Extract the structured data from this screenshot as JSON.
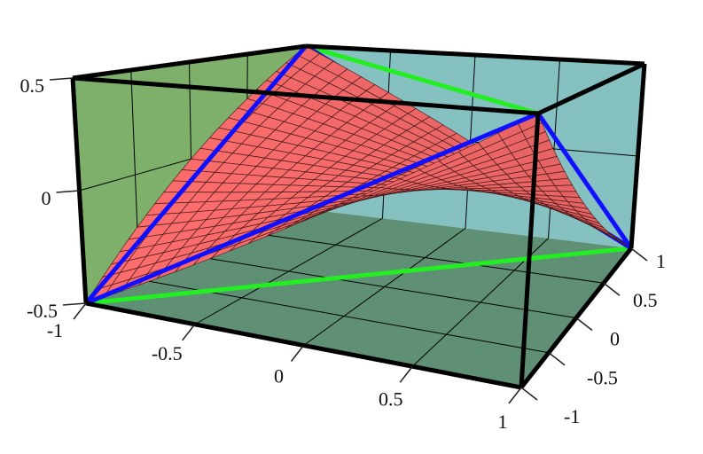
{
  "chart_data": {
    "type": "surface",
    "title": "",
    "xlabel": "",
    "ylabel": "",
    "zlabel": "",
    "xlim": [
      -1,
      1
    ],
    "ylim": [
      -1,
      1
    ],
    "zlim": [
      -0.5,
      0.5
    ],
    "x_ticks": [
      "-1",
      "-0.5",
      "0",
      "0.5",
      "1"
    ],
    "y_ticks": [
      "-1",
      "-0.5",
      "0",
      "0.5",
      "1"
    ],
    "z_ticks": [
      "-0.5",
      "0",
      "0.5"
    ],
    "grid": true,
    "surface": {
      "x": [
        -1,
        1
      ],
      "y": [
        -1,
        1
      ],
      "z": [
        [
          -0.5,
          0.5
        ],
        [
          0.5,
          -0.5
        ]
      ],
      "interpolation": "bilinear"
    },
    "edge_lines": [
      {
        "from": [
          -1,
          -1,
          -0.5
        ],
        "to": [
          -1,
          1,
          0.5
        ],
        "color": "#1010ff"
      },
      {
        "from": [
          -1,
          -1,
          -0.5
        ],
        "to": [
          1,
          -1,
          0.5
        ],
        "color": "#1010ff"
      },
      {
        "from": [
          1,
          -1,
          0.5
        ],
        "to": [
          1,
          1,
          -0.5
        ],
        "color": "#1010ff"
      },
      {
        "from": [
          -1,
          1,
          0.5
        ],
        "to": [
          1,
          1,
          -0.5
        ],
        "color": "#1010ff"
      }
    ],
    "diagonal_lines": [
      {
        "from": [
          -1,
          -1,
          -0.5
        ],
        "to": [
          1,
          1,
          -0.5
        ],
        "color": "#22ee22"
      },
      {
        "from": [
          -1,
          1,
          0.5
        ],
        "to": [
          1,
          -1,
          0.5
        ],
        "color": "#22ee22"
      }
    ],
    "colors": {
      "surface_top": "#f06868",
      "surface_under": "#8a3434",
      "wall_x": "#7fb06b",
      "wall_y": "#86c1c1",
      "floor": "#5f8f74",
      "box_edges": "#000000"
    }
  }
}
